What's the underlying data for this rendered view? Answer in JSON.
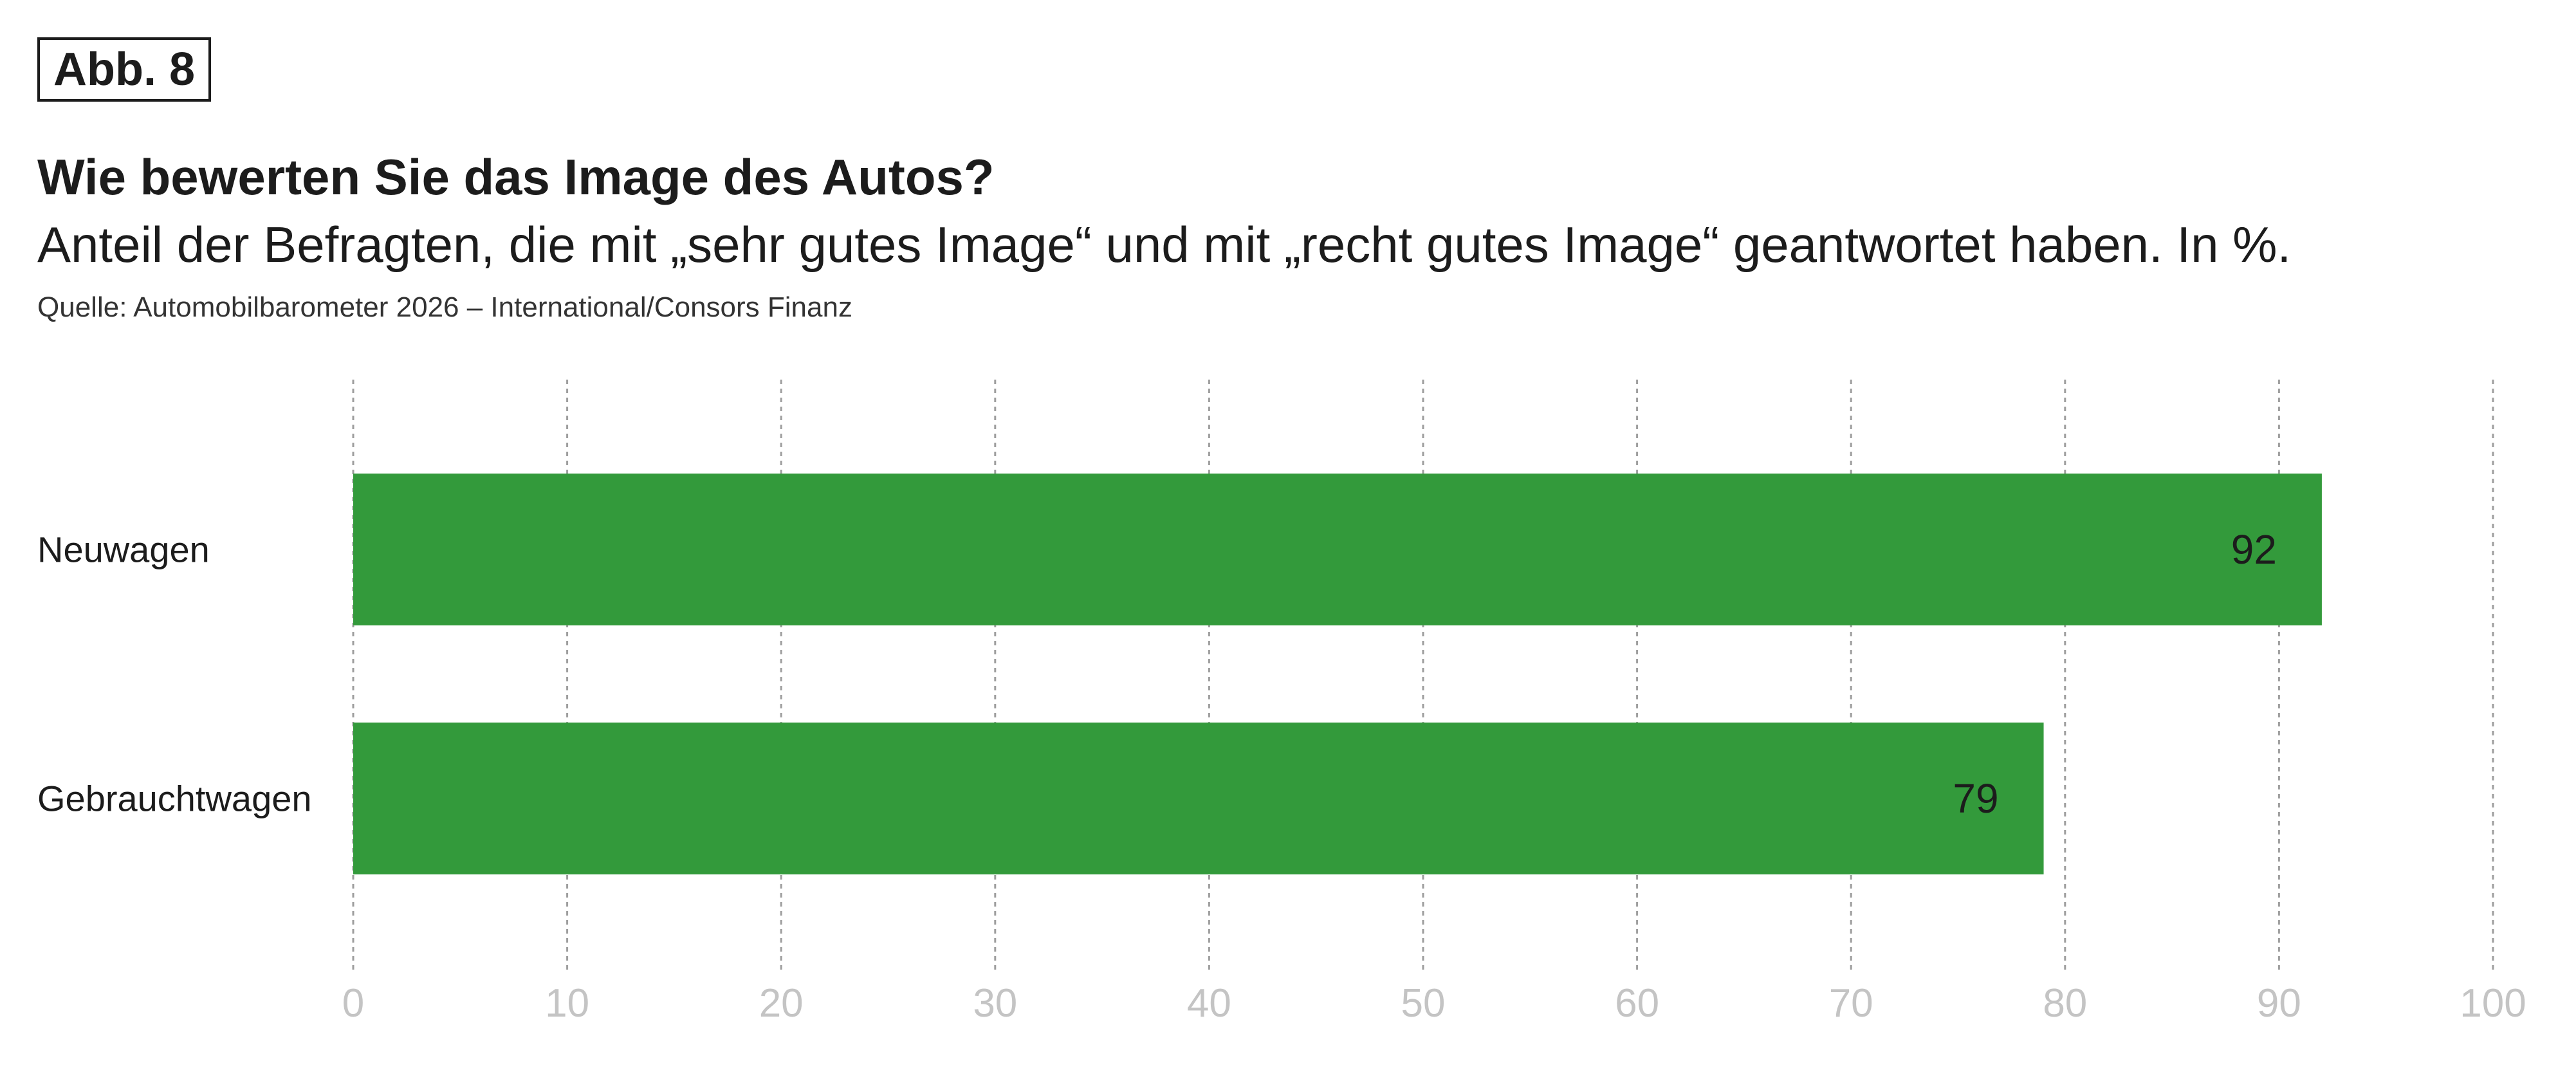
{
  "figure": {
    "label": "Abb. 8",
    "title": "Wie bewerten Sie das Image des Autos?",
    "subtitle": "Anteil der Befragten, die mit „sehr gutes Image“ und mit „recht gutes Image“ geantwortet haben. In %.",
    "source": "Quelle: Automobilbarometer 2026 – International/Consors Finanz"
  },
  "chart_data": {
    "type": "bar",
    "orientation": "horizontal",
    "categories": [
      "Neuwagen",
      "Gebrauchtwagen"
    ],
    "values": [
      92,
      79
    ],
    "xlim": [
      0,
      100
    ],
    "xticks": [
      0,
      10,
      20,
      30,
      40,
      50,
      60,
      70,
      80,
      90,
      100
    ],
    "grid": true,
    "bar_color": "#339a3b",
    "tick_color": "#c4c4c4",
    "data_labels": [
      "92",
      "79"
    ]
  }
}
